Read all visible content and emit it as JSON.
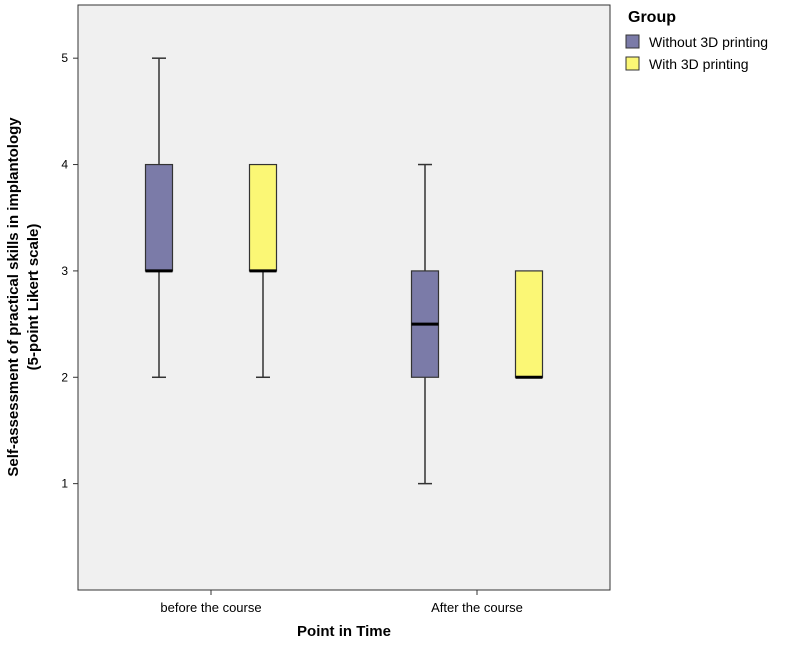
{
  "chart_data": {
    "type": "boxplot",
    "title": "",
    "xlabel": "Point in Time",
    "ylabel": "Self-assessment of practical skills in implantology",
    "ylabel2": "(5-point Likert scale)",
    "ylim": [
      0,
      5.5
    ],
    "yticks": [
      1,
      2,
      3,
      4,
      5
    ],
    "categories": [
      "before the course",
      "After the course"
    ],
    "grid": false,
    "legend": {
      "title": "Group",
      "placement": "right"
    },
    "series": [
      {
        "name": "Without 3D printing",
        "color": "#7b7ba8",
        "boxes": [
          {
            "min": 2,
            "q1": 3,
            "median": 3,
            "q3": 4,
            "max": 5
          },
          {
            "min": 1,
            "q1": 2,
            "median": 2.5,
            "q3": 3,
            "max": 4
          }
        ]
      },
      {
        "name": "With 3D printing",
        "color": "#fbf775",
        "boxes": [
          {
            "min": 2,
            "q1": 3,
            "median": 3,
            "q3": 4,
            "max": 4
          },
          {
            "min": 2,
            "q1": 2,
            "median": 2,
            "q3": 3,
            "max": 3
          }
        ]
      }
    ],
    "plot_background": "#f0f0f0"
  }
}
